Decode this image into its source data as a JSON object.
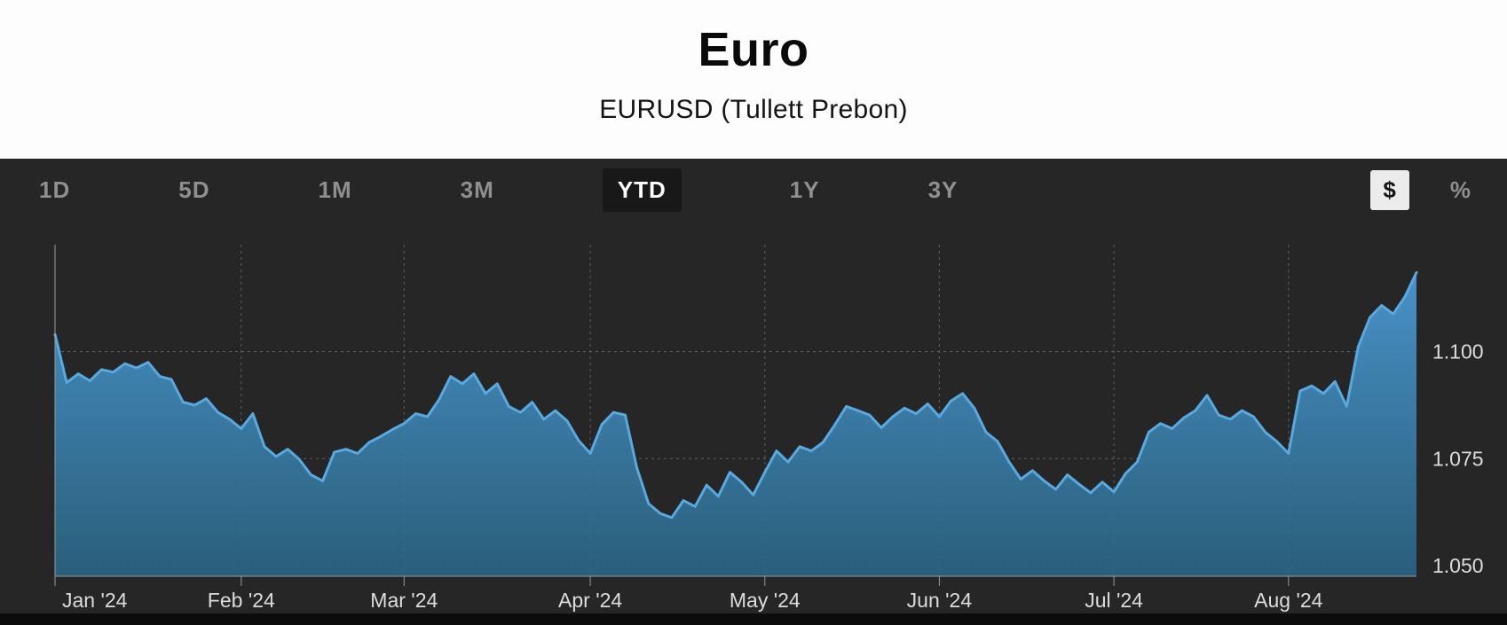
{
  "header": {
    "title": "Euro",
    "subtitle": "EURUSD (Tullett Prebon)"
  },
  "toolbar": {
    "ranges": [
      {
        "label": "1D",
        "active": false
      },
      {
        "label": "5D",
        "active": false
      },
      {
        "label": "1M",
        "active": false
      },
      {
        "label": "3M",
        "active": false
      },
      {
        "label": "YTD",
        "active": true
      },
      {
        "label": "1Y",
        "active": false
      },
      {
        "label": "3Y",
        "active": false
      }
    ],
    "units": [
      {
        "label": "$",
        "active": true
      },
      {
        "label": "%",
        "active": false
      }
    ]
  },
  "colors": {
    "panel_bg": "#262626",
    "line": "#58a9df",
    "area_top": "#4a97d0",
    "area_bottom": "#2a6584",
    "grid": "#5f5f5f",
    "axis": "#9a9a9a",
    "tick_label": "#dcdcdc",
    "active_range_bg": "#181818",
    "inactive_label": "#8f8f8f"
  },
  "chart_data": {
    "type": "area",
    "title": "Euro",
    "series_name": "EURUSD",
    "x_tick_labels": [
      "Jan '24",
      "Feb '24",
      "Mar '24",
      "Apr '24",
      "May '24",
      "Jun '24",
      "Jul '24",
      "Aug '24"
    ],
    "x_tick_indices": [
      0,
      16,
      30,
      46,
      61,
      76,
      91,
      106
    ],
    "y_ticks": [
      1.1,
      1.075,
      1.05
    ],
    "y_tick_labels": [
      "1.100",
      "1.075",
      "1.050"
    ],
    "ylim": [
      1.0475,
      1.125
    ],
    "grid": "dashed",
    "legend": "none",
    "values": [
      1.104,
      1.0928,
      1.0948,
      1.0932,
      1.0958,
      1.0952,
      1.0972,
      1.0962,
      1.0975,
      1.0942,
      1.0935,
      1.0882,
      1.0875,
      1.089,
      1.0858,
      1.0842,
      1.082,
      1.0855,
      1.0778,
      1.0755,
      1.0772,
      1.0748,
      1.0712,
      1.0698,
      1.0765,
      1.0772,
      1.0762,
      1.0788,
      1.0802,
      1.0818,
      1.0832,
      1.0855,
      1.0848,
      1.0888,
      1.0942,
      1.0925,
      1.0948,
      1.0902,
      1.0925,
      1.0872,
      1.0858,
      1.0882,
      1.0842,
      1.0862,
      1.0838,
      1.0792,
      1.0762,
      1.083,
      1.0858,
      1.0852,
      1.0728,
      1.0645,
      1.0622,
      1.0612,
      1.0652,
      1.0638,
      1.0688,
      1.0662,
      1.0718,
      1.0695,
      1.0665,
      1.0718,
      1.0768,
      1.0742,
      1.0778,
      1.0768,
      1.0788,
      1.0828,
      1.0872,
      1.0862,
      1.0852,
      1.0822,
      1.0848,
      1.0868,
      1.0855,
      1.0878,
      1.0848,
      1.0885,
      1.0902,
      1.0868,
      1.0812,
      1.079,
      1.0742,
      1.0702,
      1.0722,
      1.0698,
      1.0678,
      1.0712,
      1.069,
      1.067,
      1.0695,
      1.0672,
      1.0715,
      1.0742,
      1.0812,
      1.0832,
      1.082,
      1.0845,
      1.0862,
      1.0898,
      1.0852,
      1.0842,
      1.0862,
      1.0848,
      1.0812,
      1.079,
      1.0762,
      1.0908,
      1.092,
      1.0902,
      1.093,
      1.0872,
      1.1012,
      1.108,
      1.1108,
      1.1088,
      1.1128,
      1.1185
    ]
  }
}
